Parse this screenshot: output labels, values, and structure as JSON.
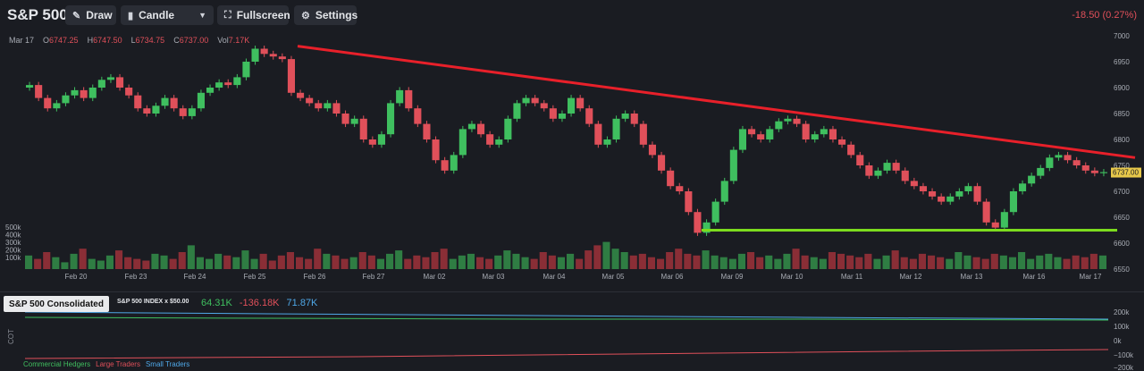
{
  "toolbar": {
    "title": "S&P 500",
    "draw_label": "Draw",
    "chart_type_label": "Candle",
    "fullscreen_label": "Fullscreen",
    "settings_label": "Settings",
    "change_text": "-18.50 (0.27%)"
  },
  "ohlc": {
    "date": "Mar 17",
    "open_key": "O",
    "open": "6747.25",
    "high_key": "H",
    "high": "6747.50",
    "low_key": "L",
    "low": "6734.75",
    "close_key": "C",
    "close": "6737.00",
    "vol_key": "Vol",
    "vol": "7.17K"
  },
  "price_axis": {
    "ticks": [
      "7000",
      "6950",
      "6900",
      "6850",
      "6800",
      "6750",
      "6700",
      "6650",
      "6600",
      "6550"
    ],
    "current_price_label": "6737.00"
  },
  "volume_axis": {
    "ticks": [
      "500k",
      "400k",
      "300k",
      "200k",
      "100k"
    ]
  },
  "date_axis": {
    "labels": [
      "Feb 20",
      "Feb 23",
      "Feb 24",
      "Feb 25",
      "Feb 26",
      "Feb 27",
      "Mar 02",
      "Mar 03",
      "Mar 04",
      "Mar 05",
      "Mar 06",
      "Mar 09",
      "Mar 10",
      "Mar 11",
      "Mar 12",
      "Mar 13",
      "Mar 16",
      "Mar 17"
    ]
  },
  "cot": {
    "panel_label": "S&P 500 Consolidated",
    "sub_label": "S&P 500 INDEX x $50.00",
    "commercial_value": "64.31K",
    "large_value": "-136.18K",
    "small_value": "71.87K",
    "side_label": "COT",
    "axis_ticks": [
      "200k",
      "100k",
      "0k",
      "−100k",
      "−200k"
    ],
    "legend": {
      "commercial": "Commercial Hedgers",
      "large": "Large Traders",
      "small": "Small Traders"
    }
  },
  "colors": {
    "up": "#3fbf5f",
    "down": "#e0505a",
    "trend": "#e8202a",
    "support": "#7cdc1e",
    "price_tag": "#e7c84a"
  },
  "chart_data": {
    "type": "candlestick",
    "ylim": [
      6550,
      7000
    ],
    "x": [
      "Feb 20",
      "Feb 23",
      "Feb 24",
      "Feb 25",
      "Feb 26",
      "Feb 27",
      "Mar 02",
      "Mar 03",
      "Mar 04",
      "Mar 05",
      "Mar 06",
      "Mar 09",
      "Mar 10",
      "Mar 11",
      "Mar 12",
      "Mar 13",
      "Mar 16",
      "Mar 17"
    ],
    "close_path": [
      6905,
      6880,
      6860,
      6870,
      6885,
      6895,
      6880,
      6900,
      6915,
      6920,
      6900,
      6885,
      6860,
      6850,
      6865,
      6880,
      6860,
      6845,
      6860,
      6890,
      6900,
      6910,
      6905,
      6920,
      6950,
      6975,
      6965,
      6960,
      6955,
      6890,
      6880,
      6870,
      6860,
      6870,
      6850,
      6830,
      6840,
      6800,
      6790,
      6810,
      6870,
      6895,
      6860,
      6830,
      6800,
      6760,
      6740,
      6770,
      6820,
      6830,
      6810,
      6790,
      6800,
      6840,
      6870,
      6880,
      6870,
      6860,
      6840,
      6850,
      6880,
      6860,
      6830,
      6790,
      6800,
      6840,
      6850,
      6830,
      6790,
      6770,
      6740,
      6710,
      6700,
      6660,
      6620,
      6640,
      6680,
      6720,
      6780,
      6820,
      6810,
      6800,
      6820,
      6835,
      6840,
      6830,
      6800,
      6810,
      6820,
      6800,
      6790,
      6770,
      6750,
      6730,
      6740,
      6755,
      6740,
      6720,
      6710,
      6700,
      6690,
      6680,
      6690,
      6700,
      6710,
      6680,
      6640,
      6630,
      6660,
      6700,
      6715,
      6730,
      6745,
      6765,
      6770,
      6760,
      6750,
      6740,
      6735,
      6737
    ],
    "volume_path": [
      40,
      30,
      50,
      35,
      20,
      45,
      60,
      30,
      25,
      40,
      55,
      35,
      30,
      25,
      45,
      40,
      30,
      50,
      70,
      35,
      30,
      45,
      40,
      35,
      55,
      30,
      45,
      25,
      40,
      50,
      35,
      30,
      60,
      45,
      40,
      30,
      35,
      50,
      40,
      30,
      45,
      55,
      30,
      40,
      35,
      50,
      60,
      30,
      40,
      45,
      35,
      30,
      40,
      55,
      45,
      35,
      30,
      50,
      40,
      35,
      45,
      30,
      55,
      70,
      80,
      60,
      50,
      40,
      45,
      35,
      30,
      50,
      60,
      45,
      40,
      55,
      40,
      35,
      30,
      45,
      50,
      35,
      40,
      30,
      45,
      60,
      40,
      35,
      30,
      50,
      45,
      40,
      35,
      45,
      30,
      40,
      55,
      35,
      30,
      45,
      40,
      35,
      30,
      50,
      40,
      35,
      30,
      45,
      40,
      35,
      50,
      30,
      40,
      45,
      35,
      30,
      40,
      35,
      45,
      40
    ],
    "trendline": {
      "label": "",
      "from": [
        "Feb 26",
        6980
      ],
      "to": [
        "Mar 17",
        6765
      ]
    },
    "support_line": {
      "label": "",
      "from": [
        "Mar 06",
        6625
      ],
      "to": [
        "Mar 17",
        6625
      ]
    },
    "grid": false
  }
}
